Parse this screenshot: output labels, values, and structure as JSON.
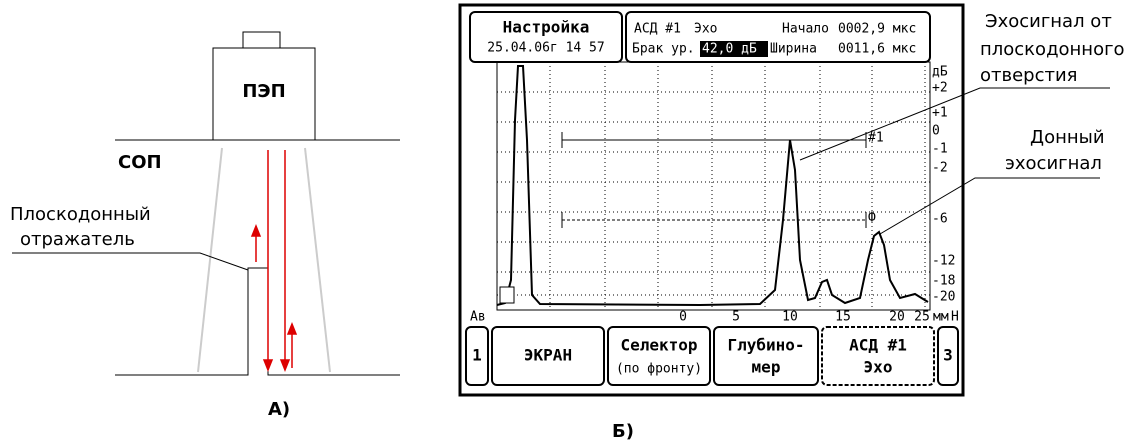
{
  "scheme": {
    "transducer": "ПЭП",
    "couplant": "СОП",
    "reflector_label": [
      "Плоскодонный",
      "отражатель"
    ],
    "caption": "А)"
  },
  "screen": {
    "mode_title": "Настройка",
    "datetime": "25.04.06г 14 57",
    "info": {
      "channel": "АСД #1",
      "channel_mode": "Эхо",
      "start_label": "Начало",
      "start_value": "0002,9 мкс",
      "reject_label": "Брак ур.",
      "reject_value": "42,0 дБ",
      "width_label": "Ширина",
      "width_value": "0011,6 мкс"
    },
    "db_scale": [
      "дБ",
      "+2",
      "+1",
      "0",
      "-1",
      "-2",
      "-6",
      "-12",
      "-18",
      "-20"
    ],
    "gate_labels": [
      "#1",
      "Ф"
    ],
    "x_axis_left": "Ав",
    "x_axis_labels": [
      "0",
      "5",
      "10",
      "15",
      "20",
      "25"
    ],
    "x_axis_unit": "мм",
    "x_axis_right": "Н",
    "buttons": {
      "left": "1",
      "screen": "ЭКРАН",
      "selector": [
        "Селектор",
        "(по фронту)"
      ],
      "depth": [
        "Глубино-",
        "мер"
      ],
      "asd": [
        "АСД #1",
        "Эхо"
      ],
      "right": "3"
    },
    "caption": "Б)"
  },
  "annotations": {
    "flat_echo": [
      "Эхосигнал от",
      "плоскодонного",
      "отверстия"
    ],
    "bottom_echo": [
      "Донный",
      "эхосигнал"
    ]
  }
}
